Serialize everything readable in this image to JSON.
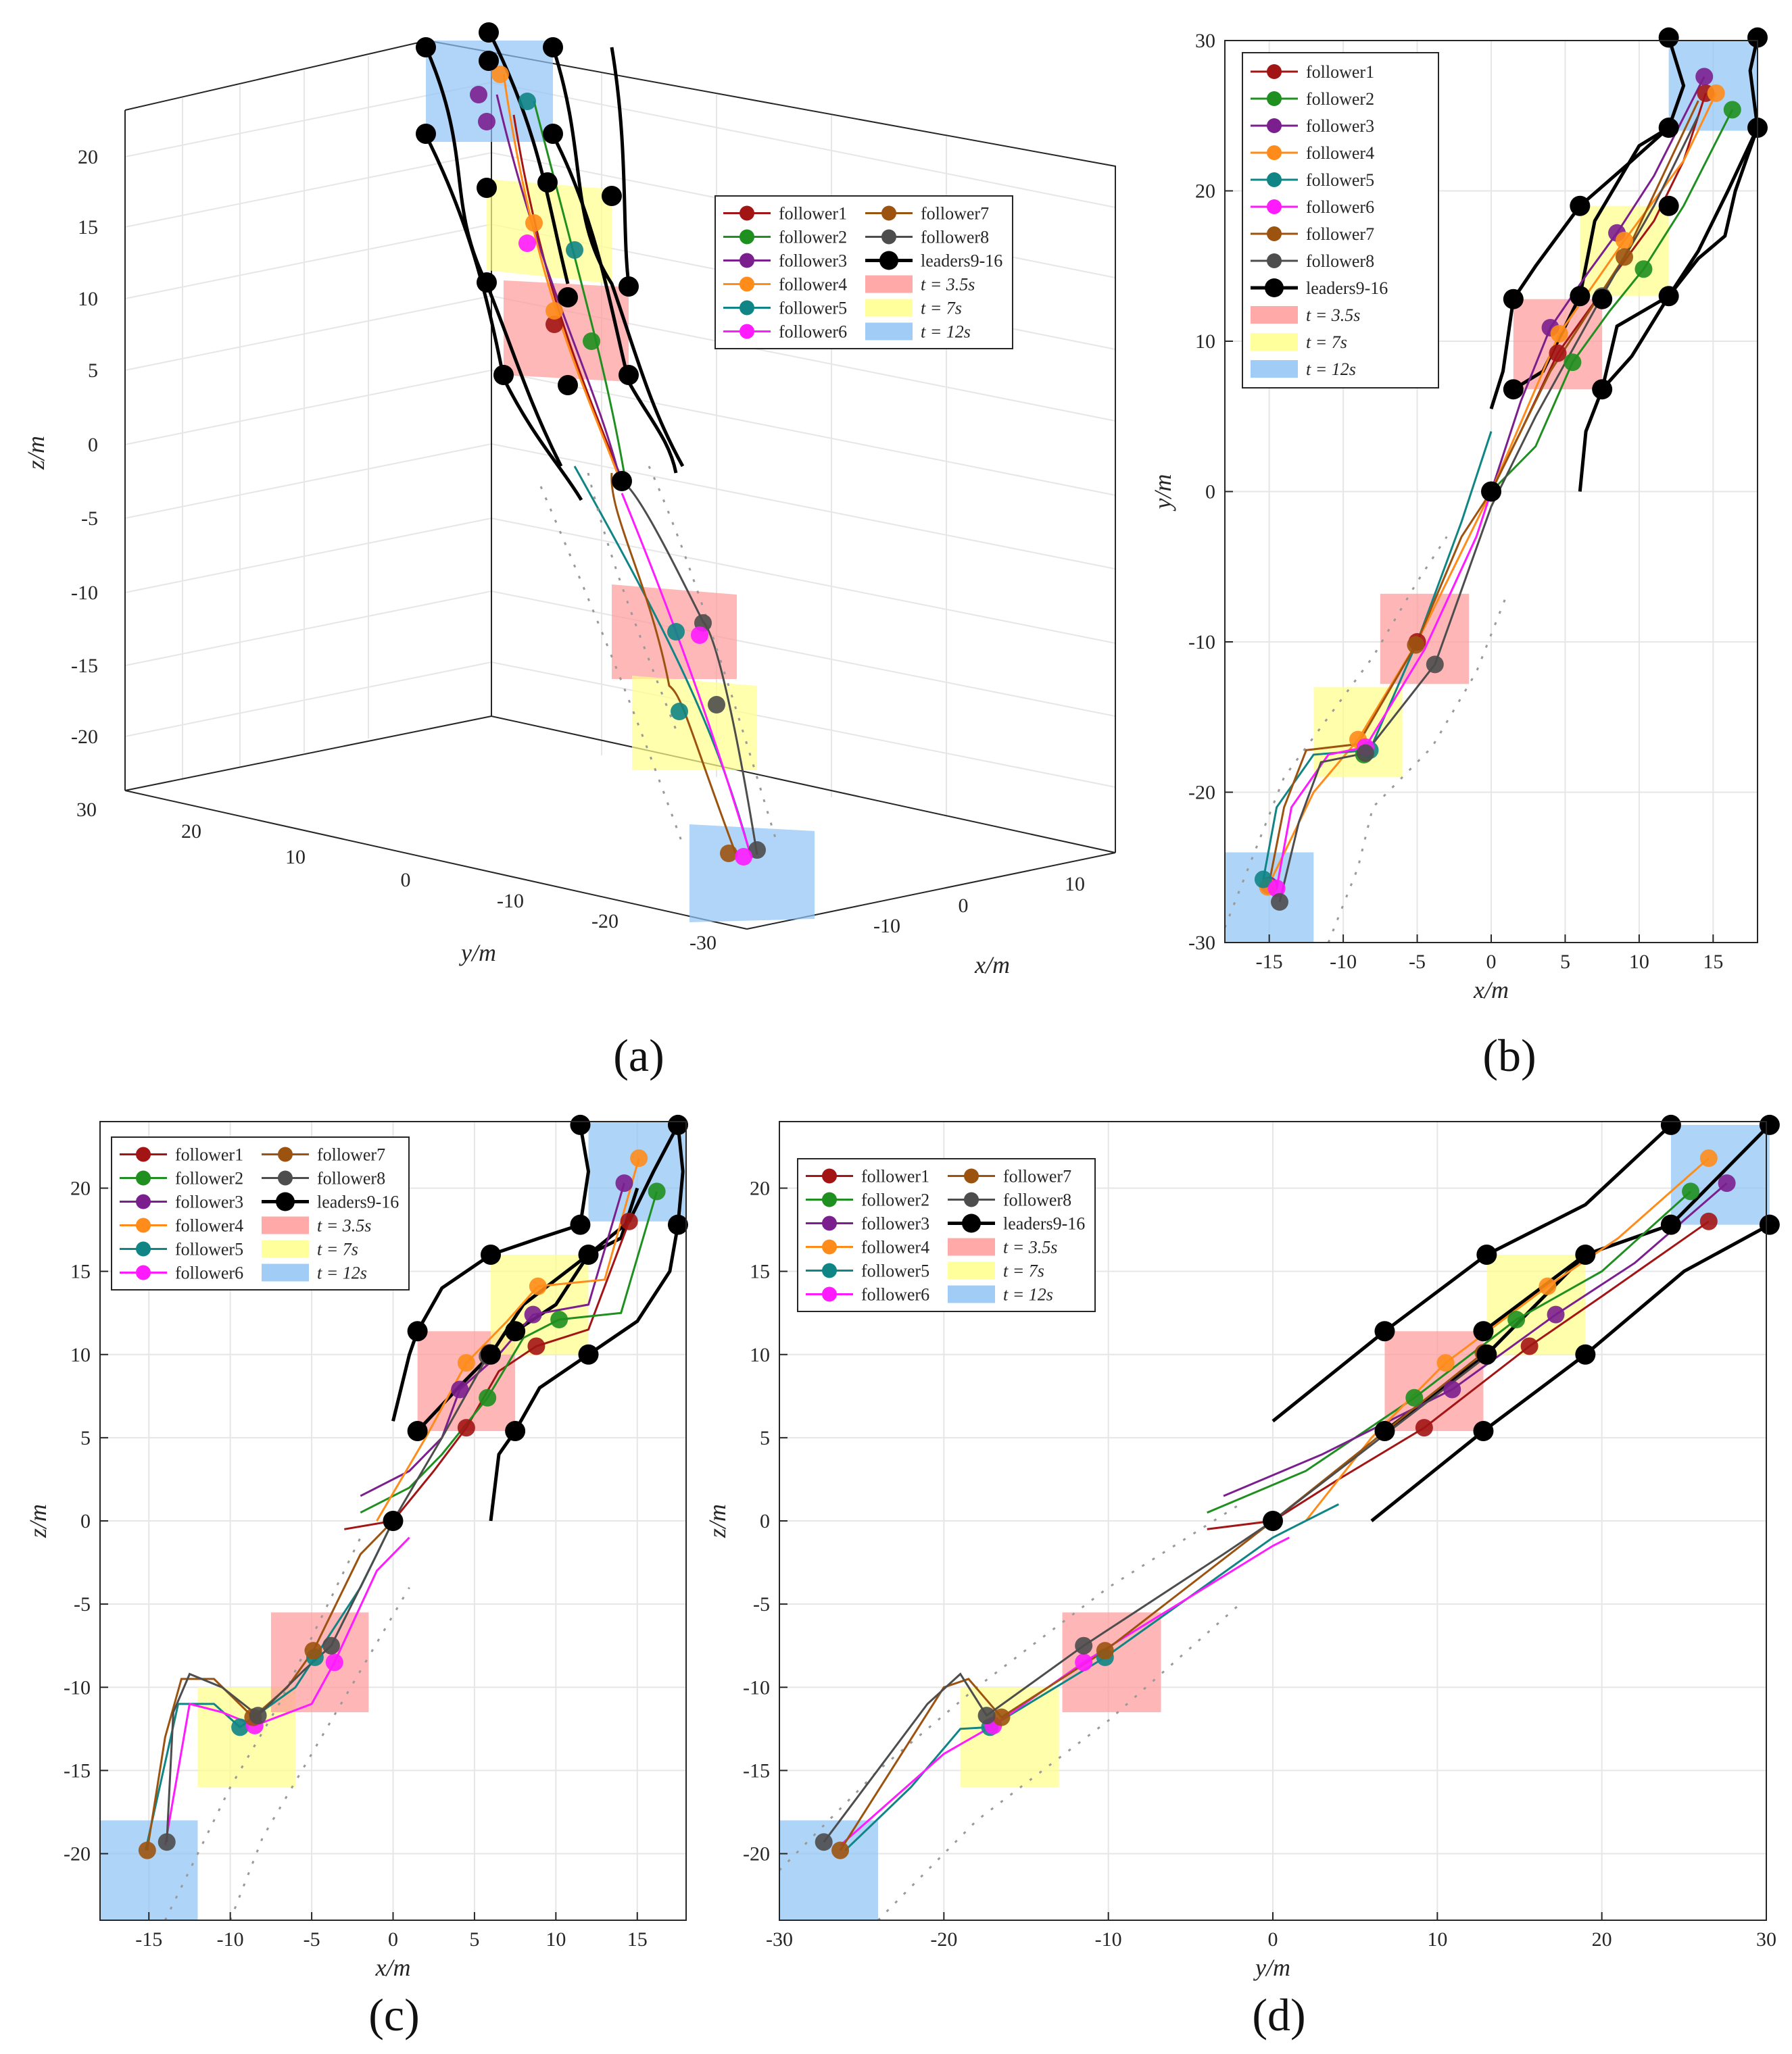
{
  "colors": {
    "follower1": "#a31515",
    "follower2": "#1f8f1f",
    "follower3": "#7b1f8f",
    "follower4": "#ff8c1a",
    "follower5": "#0f8585",
    "follower6": "#ff1aff",
    "follower7": "#9c5310",
    "follower8": "#4d4d4d",
    "leaders": "#000000",
    "t35": "#ff9a9a",
    "t7": "#ffff8a",
    "t12": "#8fc3f5",
    "grid": "#e6e6e6",
    "axis": "#262626",
    "trace": "#9a9a9a"
  },
  "legend": {
    "follower1": "follower1",
    "follower2": "follower2",
    "follower3": "follower3",
    "follower4": "follower4",
    "follower5": "follower5",
    "follower6": "follower6",
    "follower7": "follower7",
    "follower8": "follower8",
    "leaders": "leaders9-16",
    "t35": "t = 3.5s",
    "t7": "t = 7s",
    "t12": "t = 12s"
  },
  "captions": {
    "a": "(a)",
    "b": "(b)",
    "c": "(c)",
    "d": "(d)"
  },
  "chart_data": [
    {
      "panel": "a",
      "type": "line",
      "projection": "3d",
      "xlabel": "x/m",
      "ylabel": "y/m",
      "zlabel": "z/m",
      "xticks": [
        "-10",
        "0",
        "10"
      ],
      "yticks": [
        "30",
        "20",
        "10",
        "0",
        "-10",
        "-20",
        "-30"
      ],
      "zticks": [
        "20",
        "15",
        "10",
        "5",
        "0",
        "-5",
        "-10",
        "-15",
        "-20"
      ],
      "xlim": [
        -18,
        18
      ],
      "ylim": [
        -30,
        30
      ],
      "zlim": [
        -24,
        24
      ],
      "grid": true,
      "legend": [
        "follower1",
        "follower2",
        "follower3",
        "follower4",
        "follower5",
        "follower6",
        "follower7",
        "follower8",
        "leaders9-16",
        "t = 3.5s",
        "t = 7s",
        "t = 12s"
      ],
      "legend_position": "right"
    },
    {
      "panel": "b",
      "type": "line",
      "xlabel": "x/m",
      "ylabel": "y/m",
      "xlim": [
        -18,
        18
      ],
      "ylim": [
        -30,
        30
      ],
      "xticks": [
        -15,
        -10,
        -5,
        0,
        5,
        10,
        15
      ],
      "yticks": [
        30,
        20,
        10,
        0,
        -10,
        -20,
        -30
      ],
      "grid": true,
      "legend": [
        "follower1",
        "follower2",
        "follower3",
        "follower4",
        "follower5",
        "follower6",
        "follower7",
        "follower8",
        "leaders9-16",
        "t = 3.5s",
        "t = 7s",
        "t = 12s"
      ],
      "legend_position": "top-left",
      "boxes": [
        {
          "label": "t = 12s",
          "x": [
            -18,
            -12
          ],
          "y": [
            -30,
            -24
          ]
        },
        {
          "label": "t = 7s",
          "x": [
            -12,
            -6
          ],
          "y": [
            -19,
            -13
          ]
        },
        {
          "label": "t = 3.5s",
          "x": [
            -7.5,
            -1.5
          ],
          "y": [
            -12.8,
            -6.8
          ]
        },
        {
          "label": "t = 3.5s",
          "x": [
            1.5,
            7.5
          ],
          "y": [
            6.8,
            12.8
          ]
        },
        {
          "label": "t = 7s",
          "x": [
            6,
            12
          ],
          "y": [
            13,
            19
          ]
        },
        {
          "label": "t = 12s",
          "x": [
            12,
            18
          ],
          "y": [
            24,
            30
          ]
        }
      ],
      "leader_markers": [
        [
          1.5,
          6.8
        ],
        [
          7.5,
          6.8
        ],
        [
          1.5,
          12.8
        ],
        [
          7.5,
          12.8
        ],
        [
          6,
          13
        ],
        [
          12,
          13
        ],
        [
          6,
          19
        ],
        [
          12,
          19
        ],
        [
          12,
          24.2
        ],
        [
          18,
          24.2
        ],
        [
          12,
          30.2
        ],
        [
          18,
          30.2
        ],
        [
          0,
          0
        ]
      ],
      "follower_markers": [
        {
          "name": "follower1",
          "points": [
            [
              -5,
              -10
            ],
            [
              4.5,
              9.2
            ],
            [
              14.5,
              26.5
            ]
          ]
        },
        {
          "name": "follower2",
          "points": [
            [
              -8.6,
              -17.5
            ],
            [
              5.5,
              8.6
            ],
            [
              10.3,
              14.8
            ],
            [
              16.3,
              25.4
            ]
          ]
        },
        {
          "name": "follower3",
          "points": [
            [
              -15,
              -26.2
            ],
            [
              4.0,
              10.9
            ],
            [
              8.5,
              17.2
            ],
            [
              14.4,
              27.6
            ]
          ]
        },
        {
          "name": "follower4",
          "points": [
            [
              -15.1,
              -26.3
            ],
            [
              -9,
              -16.5
            ],
            [
              4.6,
              10.5
            ],
            [
              9,
              16.7
            ],
            [
              15.2,
              26.5
            ]
          ]
        },
        {
          "name": "follower5",
          "points": [
            [
              -15.4,
              -25.8
            ],
            [
              -8.2,
              -17.2
            ]
          ]
        },
        {
          "name": "follower6",
          "points": [
            [
              -14.5,
              -26.4
            ],
            [
              -8.5,
              -17.0
            ]
          ]
        },
        {
          "name": "follower7",
          "points": [
            [
              -5.1,
              -10.2
            ],
            [
              9,
              15.6
            ]
          ]
        },
        {
          "name": "follower8",
          "points": [
            [
              -14.3,
              -27.3
            ],
            [
              -3.8,
              -11.5
            ],
            [
              -8.5,
              -17.4
            ],
            [
              7.5,
              13
            ]
          ]
        }
      ]
    },
    {
      "panel": "c",
      "type": "line",
      "xlabel": "x/m",
      "ylabel": "z/m",
      "xlim": [
        -18,
        18
      ],
      "ylim": [
        -24,
        24
      ],
      "xticks": [
        -15,
        -10,
        -5,
        0,
        5,
        10,
        15
      ],
      "yticks": [
        20,
        15,
        10,
        5,
        0,
        -5,
        -10,
        -15,
        -20
      ],
      "grid": true,
      "legend": [
        "follower1",
        "follower2",
        "follower3",
        "follower4",
        "follower5",
        "follower6",
        "follower7",
        "follower8",
        "leaders9-16",
        "t = 3.5s",
        "t = 7s",
        "t = 12s"
      ],
      "legend_position": "top-left",
      "boxes": [
        {
          "label": "t = 12s",
          "x": [
            -18,
            -12
          ],
          "y": [
            -24,
            -18
          ]
        },
        {
          "label": "t = 7s",
          "x": [
            -12,
            -6
          ],
          "y": [
            -16,
            -10
          ]
        },
        {
          "label": "t = 3.5s",
          "x": [
            -7.5,
            -1.5
          ],
          "y": [
            -11.5,
            -5.5
          ]
        },
        {
          "label": "t = 3.5s",
          "x": [
            1.5,
            7.5
          ],
          "y": [
            5.4,
            11.4
          ]
        },
        {
          "label": "t = 7s",
          "x": [
            6,
            12
          ],
          "y": [
            10,
            16
          ]
        },
        {
          "label": "t = 12s",
          "x": [
            12,
            18
          ],
          "y": [
            18,
            24
          ]
        }
      ],
      "leader_markers": [
        [
          1.5,
          5.4
        ],
        [
          7.5,
          5.4
        ],
        [
          1.5,
          11.4
        ],
        [
          7.5,
          11.4
        ],
        [
          6,
          10
        ],
        [
          12,
          10
        ],
        [
          6,
          16
        ],
        [
          12,
          16
        ],
        [
          11.5,
          17.8
        ],
        [
          17.5,
          17.8
        ],
        [
          11.5,
          23.8
        ],
        [
          17.5,
          23.8
        ],
        [
          0,
          0
        ]
      ],
      "follower_markers": [
        {
          "name": "follower1",
          "points": [
            [
              4.5,
              5.6
            ],
            [
              8.8,
              10.5
            ],
            [
              14.5,
              18
            ]
          ]
        },
        {
          "name": "follower2",
          "points": [
            [
              5.8,
              7.4
            ],
            [
              10.2,
              12.1
            ],
            [
              16.2,
              19.8
            ]
          ]
        },
        {
          "name": "follower3",
          "points": [
            [
              4.1,
              7.9
            ],
            [
              8.6,
              12.4
            ],
            [
              14.2,
              20.3
            ]
          ]
        },
        {
          "name": "follower4",
          "points": [
            [
              4.5,
              9.5
            ],
            [
              8.9,
              14.1
            ],
            [
              15.1,
              21.8
            ]
          ]
        },
        {
          "name": "follower5",
          "points": [
            [
              -9.4,
              -12.4
            ],
            [
              -4.8,
              -8.2
            ]
          ]
        },
        {
          "name": "follower6",
          "points": [
            [
              -8.5,
              -12.3
            ],
            [
              -3.6,
              -8.5
            ]
          ]
        },
        {
          "name": "follower7",
          "points": [
            [
              -15.1,
              -19.8
            ],
            [
              -4.9,
              -7.8
            ],
            [
              5.9,
              10.1
            ],
            [
              -8.6,
              -11.8
            ]
          ]
        },
        {
          "name": "follower8",
          "points": [
            [
              -13.9,
              -19.3
            ],
            [
              -3.8,
              -7.5
            ],
            [
              -8.3,
              -11.7
            ],
            [
              5.8,
              9.9
            ]
          ]
        }
      ]
    },
    {
      "panel": "d",
      "type": "line",
      "xlabel": "y/m",
      "ylabel": "z/m",
      "xlim": [
        -30,
        30
      ],
      "ylim": [
        -24,
        24
      ],
      "xticks": [
        -30,
        -20,
        -10,
        0,
        10,
        20,
        30
      ],
      "yticks": [
        20,
        15,
        10,
        5,
        0,
        -5,
        -10,
        -15,
        -20
      ],
      "grid": true,
      "legend": [
        "follower1",
        "follower2",
        "follower3",
        "follower4",
        "follower5",
        "follower6",
        "follower7",
        "follower8",
        "leaders9-16",
        "t = 3.5s",
        "t = 7s",
        "t = 12s"
      ],
      "legend_position": "top-left",
      "boxes": [
        {
          "label": "t = 12s",
          "x": [
            -30,
            -24
          ],
          "y": [
            -24,
            -18
          ]
        },
        {
          "label": "t = 7s",
          "x": [
            -19,
            -13
          ],
          "y": [
            -16,
            -10
          ]
        },
        {
          "label": "t = 3.5s",
          "x": [
            -12.8,
            -6.8
          ],
          "y": [
            -11.5,
            -5.5
          ]
        },
        {
          "label": "t = 3.5s",
          "x": [
            6.8,
            12.8
          ],
          "y": [
            5.4,
            11.4
          ]
        },
        {
          "label": "t = 7s",
          "x": [
            13,
            19
          ],
          "y": [
            10,
            16
          ]
        },
        {
          "label": "t = 12s",
          "x": [
            24.2,
            30.2
          ],
          "y": [
            17.8,
            23.8
          ]
        }
      ],
      "leader_markers": [
        [
          6.8,
          5.4
        ],
        [
          12.8,
          5.4
        ],
        [
          6.8,
          11.4
        ],
        [
          12.8,
          11.4
        ],
        [
          13,
          10
        ],
        [
          19,
          10
        ],
        [
          13,
          16
        ],
        [
          19,
          16
        ],
        [
          24.2,
          17.8
        ],
        [
          30.2,
          17.8
        ],
        [
          24.2,
          23.8
        ],
        [
          30.2,
          23.8
        ],
        [
          0,
          0
        ]
      ],
      "follower_markers": [
        {
          "name": "follower1",
          "points": [
            [
              9.2,
              5.6
            ],
            [
              15.6,
              10.5
            ],
            [
              26.5,
              18
            ]
          ]
        },
        {
          "name": "follower2",
          "points": [
            [
              8.6,
              7.4
            ],
            [
              14.8,
              12.1
            ],
            [
              25.4,
              19.8
            ]
          ]
        },
        {
          "name": "follower3",
          "points": [
            [
              10.9,
              7.9
            ],
            [
              17.2,
              12.4
            ],
            [
              27.6,
              20.3
            ]
          ]
        },
        {
          "name": "follower4",
          "points": [
            [
              10.5,
              9.5
            ],
            [
              16.7,
              14.1
            ],
            [
              26.5,
              21.8
            ]
          ]
        },
        {
          "name": "follower5",
          "points": [
            [
              -17.2,
              -12.4
            ],
            [
              -10.2,
              -8.2
            ]
          ]
        },
        {
          "name": "follower6",
          "points": [
            [
              -17.0,
              -12.3
            ],
            [
              -11.5,
              -8.5
            ]
          ]
        },
        {
          "name": "follower7",
          "points": [
            [
              -26.3,
              -19.8
            ],
            [
              -10.2,
              -7.8
            ],
            [
              12.8,
              10.1
            ],
            [
              -16.5,
              -11.8
            ]
          ]
        },
        {
          "name": "follower8",
          "points": [
            [
              -27.3,
              -19.3
            ],
            [
              -11.5,
              -7.5
            ],
            [
              -17.4,
              -11.7
            ],
            [
              13,
              9.9
            ]
          ]
        }
      ]
    }
  ]
}
